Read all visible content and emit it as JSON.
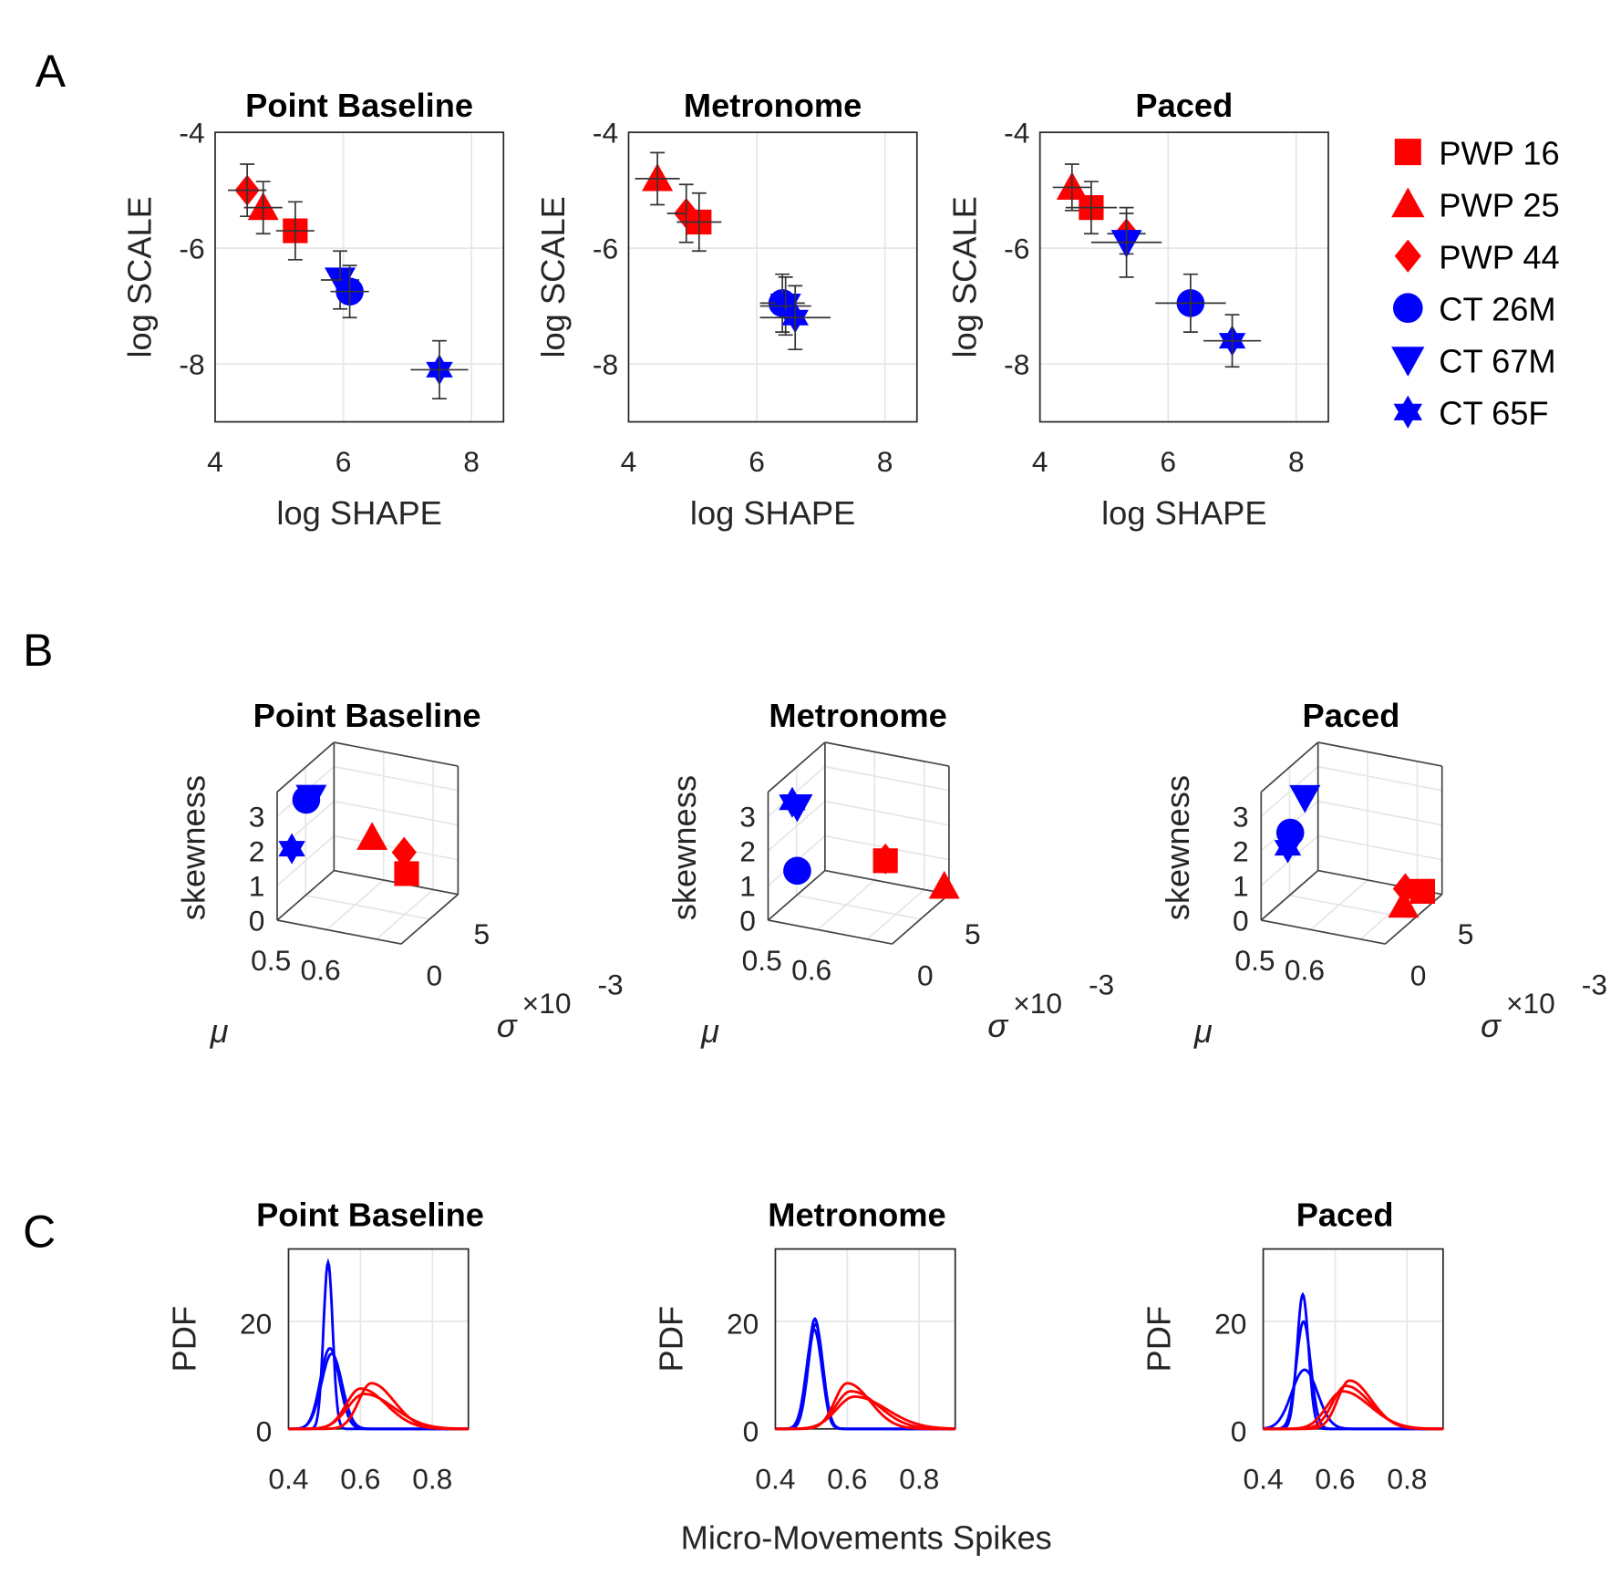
{
  "panel_letters": [
    "A",
    "B",
    "C"
  ],
  "colors": {
    "PWP": "#ff0000",
    "CT": "#0000ff"
  },
  "legend": [
    {
      "label": "PWP 16",
      "marker": "square",
      "color": "#ff0000"
    },
    {
      "label": "PWP 25",
      "marker": "triangle-up",
      "color": "#ff0000"
    },
    {
      "label": "PWP 44",
      "marker": "diamond",
      "color": "#ff0000"
    },
    {
      "label": "CT 26M",
      "marker": "circle",
      "color": "#0000ff"
    },
    {
      "label": "CT 67M",
      "marker": "triangle-down",
      "color": "#0000ff"
    },
    {
      "label": "CT 65F",
      "marker": "hexagram",
      "color": "#0000ff"
    }
  ],
  "chart_data": [
    {
      "type": "scatter",
      "panel": "A",
      "xlabel": "log SHAPE",
      "ylabel": "log SCALE",
      "xlim": [
        4,
        8.5
      ],
      "ylim": [
        -9,
        -4
      ],
      "xticks": [
        4,
        6,
        8
      ],
      "yticks": [
        -4,
        -6,
        -8
      ],
      "grid": true,
      "subplots": [
        {
          "title": "Point Baseline",
          "points": [
            {
              "subject": "PWP 44",
              "x": 4.5,
              "y": -5.0,
              "xerr": 0.3,
              "yerr": 0.45
            },
            {
              "subject": "PWP 25",
              "x": 4.75,
              "y": -5.3,
              "xerr": 0.3,
              "yerr": 0.45
            },
            {
              "subject": "PWP 16",
              "x": 5.25,
              "y": -5.7,
              "xerr": 0.3,
              "yerr": 0.5
            },
            {
              "subject": "CT 67M",
              "x": 5.95,
              "y": -6.55,
              "xerr": 0.3,
              "yerr": 0.5
            },
            {
              "subject": "CT 26M",
              "x": 6.1,
              "y": -6.75,
              "xerr": 0.3,
              "yerr": 0.45
            },
            {
              "subject": "CT 65F",
              "x": 7.5,
              "y": -8.1,
              "xerr": 0.45,
              "yerr": 0.5
            }
          ]
        },
        {
          "title": "Metronome",
          "points": [
            {
              "subject": "PWP 25",
              "x": 4.45,
              "y": -4.8,
              "xerr": 0.35,
              "yerr": 0.45
            },
            {
              "subject": "PWP 44",
              "x": 4.9,
              "y": -5.4,
              "xerr": 0.3,
              "yerr": 0.5
            },
            {
              "subject": "PWP 16",
              "x": 5.1,
              "y": -5.55,
              "xerr": 0.35,
              "yerr": 0.5
            },
            {
              "subject": "CT 26M",
              "x": 6.4,
              "y": -6.95,
              "xerr": 0.35,
              "yerr": 0.5
            },
            {
              "subject": "CT 67M",
              "x": 6.45,
              "y": -7.0,
              "xerr": 0.4,
              "yerr": 0.5
            },
            {
              "subject": "CT 65F",
              "x": 6.6,
              "y": -7.2,
              "xerr": 0.55,
              "yerr": 0.55
            }
          ]
        },
        {
          "title": "Paced",
          "points": [
            {
              "subject": "PWP 25",
              "x": 4.5,
              "y": -4.95,
              "xerr": 0.3,
              "yerr": 0.4
            },
            {
              "subject": "PWP 16",
              "x": 4.8,
              "y": -5.3,
              "xerr": 0.4,
              "yerr": 0.45
            },
            {
              "subject": "PWP 44",
              "x": 5.35,
              "y": -5.75,
              "xerr": 0.3,
              "yerr": 0.35
            },
            {
              "subject": "CT 67M",
              "x": 5.35,
              "y": -5.9,
              "xerr": 0.55,
              "yerr": 0.6
            },
            {
              "subject": "CT 26M",
              "x": 6.35,
              "y": -6.95,
              "xerr": 0.55,
              "yerr": 0.5
            },
            {
              "subject": "CT 65F",
              "x": 7.0,
              "y": -7.6,
              "xerr": 0.45,
              "yerr": 0.45
            }
          ]
        }
      ]
    },
    {
      "type": "scatter3d",
      "panel": "B",
      "xlabel": "μ",
      "ylabel": "σ",
      "ylabel_exponent": "×10",
      "ylabel_exponent_power": "-3",
      "zlabel": "skewness",
      "xlim": [
        0.45,
        0.7
      ],
      "ylim": [
        0,
        6
      ],
      "zlim": [
        0,
        3.7
      ],
      "xticks": [
        0.5,
        0.6
      ],
      "yticks": [
        0,
        5
      ],
      "zticks": [
        0,
        1,
        2,
        3
      ],
      "grid": true,
      "subplots": [
        {
          "title": "Point Baseline",
          "points": [
            {
              "subject": "CT 26M",
              "mu": 0.48,
              "sigma": 1.5,
              "skewness": 3.2
            },
            {
              "subject": "CT 67M",
              "mu": 0.49,
              "sigma": 1.5,
              "skewness": 3.3
            },
            {
              "subject": "CT 65F",
              "mu": 0.47,
              "sigma": 0.5,
              "skewness": 2.0
            },
            {
              "subject": "PWP 25",
              "mu": 0.565,
              "sigma": 4.0,
              "skewness": 1.75
            },
            {
              "subject": "PWP 44",
              "mu": 0.62,
              "sigma": 4.5,
              "skewness": 1.35
            },
            {
              "subject": "PWP 16",
              "mu": 0.625,
              "sigma": 4.5,
              "skewness": 0.75
            }
          ]
        },
        {
          "title": "Metronome",
          "points": [
            {
              "subject": "CT 65F",
              "mu": 0.47,
              "sigma": 1.5,
              "skewness": 3.1
            },
            {
              "subject": "CT 67M",
              "mu": 0.48,
              "sigma": 1.5,
              "skewness": 3.0
            },
            {
              "subject": "CT 26M",
              "mu": 0.48,
              "sigma": 1.5,
              "skewness": 1.15
            },
            {
              "subject": "PWP 16",
              "mu": 0.61,
              "sigma": 4.0,
              "skewness": 1.2
            },
            {
              "subject": "PWP 44",
              "mu": 0.61,
              "sigma": 4.0,
              "skewness": 1.25
            },
            {
              "subject": "PWP 25",
              "mu": 0.7,
              "sigma": 5.5,
              "skewness": 0.35
            }
          ]
        },
        {
          "title": "Paced",
          "points": [
            {
              "subject": "CT 67M",
              "mu": 0.5,
              "sigma": 2.0,
              "skewness": 3.2
            },
            {
              "subject": "CT 65F",
              "mu": 0.475,
              "sigma": 1.5,
              "skewness": 1.8
            },
            {
              "subject": "CT 26M",
              "mu": 0.48,
              "sigma": 1.5,
              "skewness": 2.25
            },
            {
              "subject": "PWP 44",
              "mu": 0.645,
              "sigma": 5.0,
              "skewness": 0.25
            },
            {
              "subject": "PWP 25",
              "mu": 0.67,
              "sigma": 3.5,
              "skewness": 0.2
            },
            {
              "subject": "PWP 16",
              "mu": 0.68,
              "sigma": 5.0,
              "skewness": 0.27
            }
          ]
        }
      ]
    },
    {
      "type": "line",
      "panel": "C",
      "xlabel": "Micro-Movements Spikes",
      "ylabel": "PDF",
      "xlim": [
        0.4,
        0.9
      ],
      "ylim": [
        0,
        33.5
      ],
      "xticks": [
        0.4,
        0.6,
        0.8
      ],
      "yticks": [
        0,
        20
      ],
      "grid": true,
      "subplots": [
        {
          "title": "Point Baseline",
          "curves": [
            {
              "group": "CT",
              "mode": 0.51,
              "peak": 31
            },
            {
              "group": "CT",
              "mode": 0.515,
              "peak": 15
            },
            {
              "group": "CT",
              "mode": 0.52,
              "peak": 14
            },
            {
              "group": "PWP",
              "mode": 0.63,
              "peak": 8.5
            },
            {
              "group": "PWP",
              "mode": 0.6,
              "peak": 7.5
            },
            {
              "group": "PWP",
              "mode": 0.61,
              "peak": 6.5
            }
          ]
        },
        {
          "title": "Metronome",
          "curves": [
            {
              "group": "CT",
              "mode": 0.51,
              "peak": 20.5
            },
            {
              "group": "CT",
              "mode": 0.512,
              "peak": 19.5
            },
            {
              "group": "CT",
              "mode": 0.508,
              "peak": 18.5
            },
            {
              "group": "PWP",
              "mode": 0.6,
              "peak": 8.5
            },
            {
              "group": "PWP",
              "mode": 0.61,
              "peak": 7
            },
            {
              "group": "PWP",
              "mode": 0.62,
              "peak": 6
            }
          ]
        },
        {
          "title": "Paced",
          "curves": [
            {
              "group": "CT",
              "mode": 0.51,
              "peak": 25
            },
            {
              "group": "CT",
              "mode": 0.512,
              "peak": 20
            },
            {
              "group": "CT",
              "mode": 0.515,
              "peak": 11
            },
            {
              "group": "PWP",
              "mode": 0.64,
              "peak": 9
            },
            {
              "group": "PWP",
              "mode": 0.63,
              "peak": 8
            },
            {
              "group": "PWP",
              "mode": 0.62,
              "peak": 7
            }
          ]
        }
      ]
    }
  ]
}
